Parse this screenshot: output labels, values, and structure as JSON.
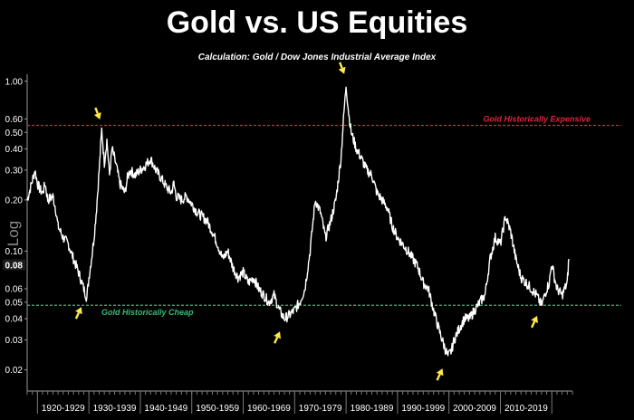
{
  "header": {
    "title": "Gold vs. US Equities",
    "subtitle": "Calculation: Gold / Dow Jones Industrial Average Index"
  },
  "chart_data": {
    "type": "line",
    "title": "Gold vs. US Equities",
    "subtitle": "Calculation: Gold / Dow Jones Industrial Average Index",
    "ylabel": "Log",
    "yscale": "log",
    "ylim": [
      0.015,
      1.1
    ],
    "xlim": [
      1918,
      2024
    ],
    "grid": false,
    "y_ticks": [
      "1.00",
      "0.60",
      "0.50",
      "0.40",
      "0.30",
      "0.20",
      "0.10",
      "0.06",
      "0.05",
      "0.04",
      "0.03",
      "0.02"
    ],
    "y_tick_values": [
      1.0,
      0.6,
      0.5,
      0.4,
      0.3,
      0.2,
      0.1,
      0.06,
      0.05,
      0.04,
      0.03,
      0.02
    ],
    "last_value_label": "0.08",
    "last_value": 0.083,
    "x_ticks": [
      "1920-1929",
      "1930-1939",
      "1940-1949",
      "1950-1959",
      "1960-1969",
      "1970-1979",
      "1980-1989",
      "1990-1999",
      "2000-2009",
      "2010-2019"
    ],
    "x_tick_starts": [
      1920,
      1930,
      1940,
      1950,
      1960,
      1970,
      1980,
      1990,
      2000,
      2010
    ],
    "x_end": 2020,
    "reference_lines": [
      {
        "label": "Gold Historically Expensive",
        "value": 0.55,
        "color": "#e0243a"
      },
      {
        "label": "Gold Historically Cheap",
        "value": 0.048,
        "color": "#3cb878"
      }
    ],
    "markers": [
      {
        "x": 1929.6,
        "y": 0.053,
        "direction": "up"
      },
      {
        "x": 1932.5,
        "y": 0.54,
        "direction": "down"
      },
      {
        "x": 1968.2,
        "y": 0.038,
        "direction": "up"
      },
      {
        "x": 1980.0,
        "y": 1.0,
        "direction": "down"
      },
      {
        "x": 1999.8,
        "y": 0.023,
        "direction": "up"
      },
      {
        "x": 2018.2,
        "y": 0.047,
        "direction": "up"
      }
    ],
    "series": [
      {
        "color": "#ffffff",
        "points": [
          [
            1918.0,
            0.2
          ],
          [
            1919.0,
            0.26
          ],
          [
            1919.5,
            0.3
          ],
          [
            1920.0,
            0.25
          ],
          [
            1920.5,
            0.23
          ],
          [
            1921.0,
            0.22
          ],
          [
            1921.5,
            0.25
          ],
          [
            1922.0,
            0.2
          ],
          [
            1923.0,
            0.21
          ],
          [
            1923.5,
            0.18
          ],
          [
            1924.0,
            0.14
          ],
          [
            1925.0,
            0.12
          ],
          [
            1926.0,
            0.11
          ],
          [
            1927.0,
            0.09
          ],
          [
            1928.0,
            0.075
          ],
          [
            1929.0,
            0.06
          ],
          [
            1929.6,
            0.053
          ],
          [
            1930.0,
            0.07
          ],
          [
            1930.5,
            0.09
          ],
          [
            1931.0,
            0.12
          ],
          [
            1931.5,
            0.18
          ],
          [
            1932.0,
            0.3
          ],
          [
            1932.5,
            0.52
          ],
          [
            1933.0,
            0.33
          ],
          [
            1933.5,
            0.45
          ],
          [
            1934.0,
            0.28
          ],
          [
            1934.5,
            0.4
          ],
          [
            1935.0,
            0.35
          ],
          [
            1935.5,
            0.3
          ],
          [
            1936.0,
            0.25
          ],
          [
            1937.0,
            0.22
          ],
          [
            1937.5,
            0.27
          ],
          [
            1938.0,
            0.3
          ],
          [
            1939.0,
            0.28
          ],
          [
            1940.0,
            0.3
          ],
          [
            1941.0,
            0.32
          ],
          [
            1942.0,
            0.35
          ],
          [
            1943.0,
            0.3
          ],
          [
            1944.0,
            0.27
          ],
          [
            1945.0,
            0.24
          ],
          [
            1946.0,
            0.22
          ],
          [
            1946.5,
            0.25
          ],
          [
            1947.0,
            0.21
          ],
          [
            1948.0,
            0.2
          ],
          [
            1949.0,
            0.21
          ],
          [
            1950.0,
            0.19
          ],
          [
            1951.0,
            0.17
          ],
          [
            1952.0,
            0.16
          ],
          [
            1953.0,
            0.15
          ],
          [
            1954.0,
            0.13
          ],
          [
            1955.0,
            0.11
          ],
          [
            1956.0,
            0.09
          ],
          [
            1957.0,
            0.1
          ],
          [
            1958.0,
            0.08
          ],
          [
            1959.0,
            0.07
          ],
          [
            1960.0,
            0.075
          ],
          [
            1961.0,
            0.065
          ],
          [
            1962.0,
            0.07
          ],
          [
            1963.0,
            0.06
          ],
          [
            1964.0,
            0.055
          ],
          [
            1965.0,
            0.05
          ],
          [
            1966.0,
            0.055
          ],
          [
            1967.0,
            0.045
          ],
          [
            1968.0,
            0.04
          ],
          [
            1969.0,
            0.042
          ],
          [
            1970.0,
            0.045
          ],
          [
            1971.0,
            0.05
          ],
          [
            1972.0,
            0.06
          ],
          [
            1973.0,
            0.1
          ],
          [
            1974.0,
            0.2
          ],
          [
            1975.0,
            0.17
          ],
          [
            1976.0,
            0.12
          ],
          [
            1977.0,
            0.15
          ],
          [
            1978.0,
            0.2
          ],
          [
            1979.0,
            0.35
          ],
          [
            1979.5,
            0.6
          ],
          [
            1980.0,
            0.95
          ],
          [
            1980.5,
            0.65
          ],
          [
            1981.0,
            0.5
          ],
          [
            1982.0,
            0.4
          ],
          [
            1983.0,
            0.35
          ],
          [
            1984.0,
            0.3
          ],
          [
            1985.0,
            0.28
          ],
          [
            1986.0,
            0.22
          ],
          [
            1987.0,
            0.2
          ],
          [
            1988.0,
            0.18
          ],
          [
            1989.0,
            0.14
          ],
          [
            1990.0,
            0.12
          ],
          [
            1991.0,
            0.11
          ],
          [
            1992.0,
            0.1
          ],
          [
            1993.0,
            0.09
          ],
          [
            1994.0,
            0.08
          ],
          [
            1995.0,
            0.065
          ],
          [
            1996.0,
            0.06
          ],
          [
            1997.0,
            0.045
          ],
          [
            1998.0,
            0.035
          ],
          [
            1999.0,
            0.028
          ],
          [
            1999.8,
            0.024
          ],
          [
            2000.5,
            0.026
          ],
          [
            2001.0,
            0.03
          ],
          [
            2002.0,
            0.035
          ],
          [
            2003.0,
            0.04
          ],
          [
            2004.0,
            0.04
          ],
          [
            2005.0,
            0.045
          ],
          [
            2006.0,
            0.05
          ],
          [
            2007.0,
            0.055
          ],
          [
            2008.0,
            0.09
          ],
          [
            2009.0,
            0.12
          ],
          [
            2010.0,
            0.11
          ],
          [
            2011.0,
            0.16
          ],
          [
            2012.0,
            0.13
          ],
          [
            2013.0,
            0.09
          ],
          [
            2014.0,
            0.07
          ],
          [
            2015.0,
            0.065
          ],
          [
            2016.0,
            0.06
          ],
          [
            2017.0,
            0.055
          ],
          [
            2018.0,
            0.048
          ],
          [
            2019.0,
            0.06
          ],
          [
            2019.5,
            0.065
          ],
          [
            2020.0,
            0.085
          ],
          [
            2020.5,
            0.07
          ],
          [
            2021.0,
            0.06
          ],
          [
            2022.0,
            0.055
          ],
          [
            2022.5,
            0.06
          ],
          [
            2023.0,
            0.065
          ],
          [
            2023.3,
            0.09
          ]
        ]
      }
    ]
  }
}
